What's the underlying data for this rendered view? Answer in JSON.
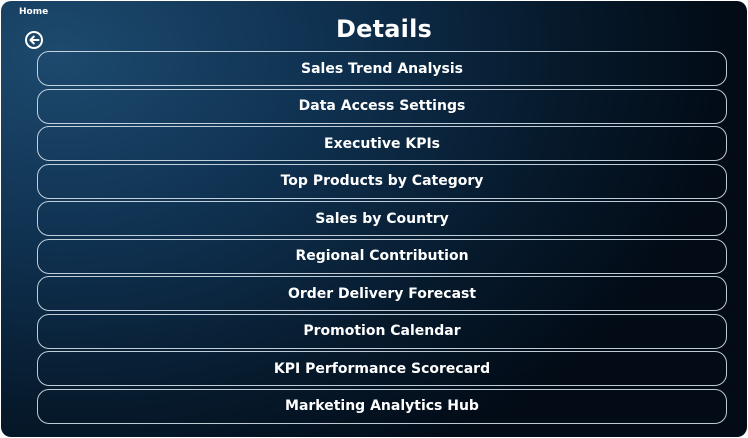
{
  "header": {
    "home_label": "Home",
    "title": "Details",
    "back_icon": "back-arrow-circle-icon"
  },
  "menu": {
    "items": [
      {
        "label": "Sales Trend Analysis"
      },
      {
        "label": "Data Access Settings"
      },
      {
        "label": "Executive KPIs"
      },
      {
        "label": "Top Products by Category"
      },
      {
        "label": "Sales by Country"
      },
      {
        "label": "Regional Contribution"
      },
      {
        "label": "Order Delivery Forecast"
      },
      {
        "label": "Promotion Calendar"
      },
      {
        "label": "KPI Performance Scorecard"
      },
      {
        "label": "Marketing Analytics Hub"
      }
    ]
  },
  "colors": {
    "background_dark": "#020b16",
    "background_light": "#1d4a6e",
    "text": "#ffffff",
    "button_border": "#e1ebf5"
  }
}
